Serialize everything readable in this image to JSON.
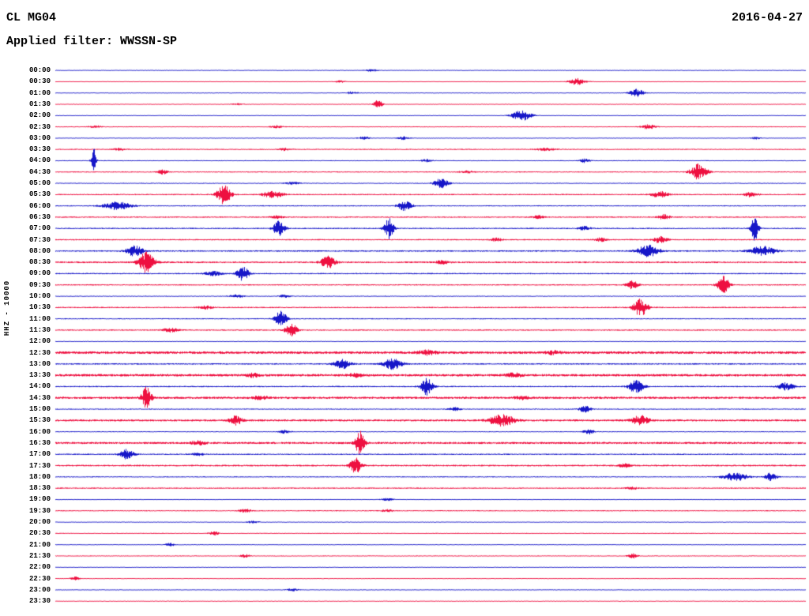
{
  "header": {
    "station": "CL MG04",
    "date": "2016-04-27",
    "filter_label": "Applied filter: WWSSN-SP"
  },
  "axis": {
    "channel_label": "HHZ - 10000"
  },
  "chart_data": {
    "type": "line",
    "title": "CL MG04 helicorder day plot 2016-04-27, WWSSN-SP filtered",
    "xlabel": "",
    "ylabel": "HHZ - 10000",
    "row_duration_min": 30,
    "legend": "alternating line colors per 30-minute trace segment",
    "colors": {
      "blue": "#1616c8",
      "red": "#ee1040"
    },
    "rows": [
      {
        "time": "00:00",
        "color": "blue",
        "noise": 0.5,
        "events": [
          [
            400,
            1.5,
            5
          ]
        ]
      },
      {
        "time": "00:30",
        "color": "red",
        "noise": 0.5,
        "events": [
          [
            660,
            4,
            7
          ],
          [
            360,
            1.2,
            5
          ]
        ]
      },
      {
        "time": "01:00",
        "color": "blue",
        "noise": 0.5,
        "events": [
          [
            735,
            5,
            6
          ],
          [
            375,
            1.5,
            5
          ]
        ]
      },
      {
        "time": "01:30",
        "color": "red",
        "noise": 0.5,
        "events": [
          [
            408,
            5,
            4
          ],
          [
            230,
            1,
            5
          ]
        ]
      },
      {
        "time": "02:00",
        "color": "blue",
        "noise": 0.5,
        "events": [
          [
            590,
            7,
            8
          ]
        ]
      },
      {
        "time": "02:30",
        "color": "red",
        "noise": 0.6,
        "events": [
          [
            750,
            3,
            6
          ],
          [
            280,
            1.5,
            5
          ],
          [
            50,
            1.5,
            5
          ]
        ]
      },
      {
        "time": "03:00",
        "color": "blue",
        "noise": 0.5,
        "events": [
          [
            390,
            2,
            5
          ],
          [
            440,
            2,
            5
          ],
          [
            886,
            1.5,
            4
          ]
        ]
      },
      {
        "time": "03:30",
        "color": "red",
        "noise": 0.7,
        "events": [
          [
            80,
            1.5,
            5
          ],
          [
            290,
            1.5,
            5
          ],
          [
            620,
            1.5,
            8
          ]
        ]
      },
      {
        "time": "04:00",
        "color": "blue",
        "noise": 0.6,
        "events": [
          [
            48,
            18,
            2
          ],
          [
            470,
            1.5,
            5
          ],
          [
            670,
            2.5,
            4
          ]
        ]
      },
      {
        "time": "04:30",
        "color": "red",
        "noise": 0.7,
        "events": [
          [
            135,
            3,
            4
          ],
          [
            814,
            10,
            7
          ],
          [
            520,
            1.5,
            6
          ]
        ]
      },
      {
        "time": "05:00",
        "color": "blue",
        "noise": 0.6,
        "events": [
          [
            488,
            6,
            6
          ],
          [
            300,
            1.5,
            6
          ]
        ]
      },
      {
        "time": "05:30",
        "color": "red",
        "noise": 0.8,
        "events": [
          [
            213,
            12,
            6
          ],
          [
            275,
            4,
            9
          ],
          [
            765,
            4,
            7
          ],
          [
            880,
            3,
            6
          ]
        ]
      },
      {
        "time": "06:00",
        "color": "blue",
        "noise": 0.7,
        "events": [
          [
            78,
            5,
            12
          ],
          [
            442,
            6,
            6
          ]
        ]
      },
      {
        "time": "06:30",
        "color": "red",
        "noise": 0.8,
        "events": [
          [
            280,
            1.5,
            6
          ],
          [
            610,
            2,
            5
          ],
          [
            770,
            3,
            5
          ]
        ]
      },
      {
        "time": "07:00",
        "color": "blue",
        "noise": 0.8,
        "events": [
          [
            283,
            10,
            5
          ],
          [
            422,
            13,
            4
          ],
          [
            670,
            2.5,
            5
          ],
          [
            885,
            16,
            3
          ]
        ]
      },
      {
        "time": "07:30",
        "color": "red",
        "noise": 0.8,
        "events": [
          [
            558,
            2,
            5
          ],
          [
            690,
            2.5,
            5
          ],
          [
            765,
            4,
            6
          ]
        ]
      },
      {
        "time": "08:00",
        "color": "blue",
        "noise": 0.9,
        "events": [
          [
            100,
            7,
            7
          ],
          [
            750,
            8,
            9
          ],
          [
            895,
            6,
            11
          ]
        ]
      },
      {
        "time": "08:30",
        "color": "red",
        "noise": 1.0,
        "events": [
          [
            115,
            13,
            7
          ],
          [
            345,
            8,
            6
          ],
          [
            490,
            2,
            6
          ]
        ]
      },
      {
        "time": "09:00",
        "color": "blue",
        "noise": 0.8,
        "events": [
          [
            200,
            3,
            7
          ],
          [
            237,
            9,
            5
          ]
        ]
      },
      {
        "time": "09:30",
        "color": "red",
        "noise": 0.8,
        "events": [
          [
            730,
            5,
            5
          ],
          [
            845,
            11,
            5
          ]
        ]
      },
      {
        "time": "10:00",
        "color": "blue",
        "noise": 0.6,
        "events": [
          [
            230,
            2,
            6
          ],
          [
            290,
            1.5,
            5
          ]
        ]
      },
      {
        "time": "10:30",
        "color": "red",
        "noise": 0.8,
        "events": [
          [
            740,
            11,
            6
          ],
          [
            190,
            2,
            6
          ]
        ]
      },
      {
        "time": "11:00",
        "color": "blue",
        "noise": 0.7,
        "events": [
          [
            285,
            10,
            5
          ]
        ]
      },
      {
        "time": "11:30",
        "color": "red",
        "noise": 0.8,
        "events": [
          [
            298,
            9,
            5
          ],
          [
            145,
            2.5,
            7
          ]
        ]
      },
      {
        "time": "12:00",
        "color": "blue",
        "noise": 0.5,
        "events": []
      },
      {
        "time": "12:30",
        "color": "red",
        "noise": 1.6,
        "events": [
          [
            470,
            2.5,
            8
          ],
          [
            630,
            2,
            6
          ]
        ]
      },
      {
        "time": "13:00",
        "color": "blue",
        "noise": 0.9,
        "events": [
          [
            362,
            6,
            7
          ],
          [
            427,
            7,
            8
          ]
        ]
      },
      {
        "time": "13:30",
        "color": "red",
        "noise": 1.5,
        "events": [
          [
            250,
            2,
            6
          ],
          [
            380,
            2,
            6
          ],
          [
            580,
            2.5,
            7
          ]
        ]
      },
      {
        "time": "14:00",
        "color": "blue",
        "noise": 0.8,
        "events": [
          [
            470,
            11,
            5
          ],
          [
            735,
            9,
            6
          ],
          [
            925,
            5,
            7
          ]
        ]
      },
      {
        "time": "14:30",
        "color": "red",
        "noise": 1.4,
        "events": [
          [
            115,
            14,
            4
          ],
          [
            260,
            2.5,
            6
          ],
          [
            590,
            2,
            6
          ]
        ]
      },
      {
        "time": "15:00",
        "color": "blue",
        "noise": 0.7,
        "events": [
          [
            670,
            4,
            5
          ],
          [
            505,
            2,
            5
          ]
        ]
      },
      {
        "time": "15:30",
        "color": "red",
        "noise": 1.2,
        "events": [
          [
            228,
            6,
            5
          ],
          [
            565,
            7,
            11
          ],
          [
            740,
            6,
            7
          ]
        ]
      },
      {
        "time": "16:00",
        "color": "blue",
        "noise": 0.6,
        "events": [
          [
            290,
            2,
            5
          ],
          [
            675,
            3,
            5
          ]
        ]
      },
      {
        "time": "16:30",
        "color": "red",
        "noise": 1.3,
        "events": [
          [
            385,
            15,
            4
          ],
          [
            180,
            2.5,
            6
          ]
        ]
      },
      {
        "time": "17:00",
        "color": "blue",
        "noise": 0.8,
        "events": [
          [
            90,
            6,
            6
          ],
          [
            180,
            2,
            5
          ]
        ]
      },
      {
        "time": "17:30",
        "color": "red",
        "noise": 1.0,
        "events": [
          [
            380,
            10,
            5
          ],
          [
            720,
            2,
            5
          ]
        ]
      },
      {
        "time": "18:00",
        "color": "blue",
        "noise": 0.7,
        "events": [
          [
            860,
            5,
            11
          ],
          [
            905,
            5,
            5
          ]
        ]
      },
      {
        "time": "18:30",
        "color": "red",
        "noise": 0.8,
        "events": [
          [
            730,
            1.5,
            5
          ]
        ]
      },
      {
        "time": "19:00",
        "color": "blue",
        "noise": 0.5,
        "events": [
          [
            420,
            1.5,
            5
          ]
        ]
      },
      {
        "time": "19:30",
        "color": "red",
        "noise": 0.7,
        "events": [
          [
            240,
            2,
            5
          ],
          [
            420,
            1.5,
            5
          ]
        ]
      },
      {
        "time": "20:00",
        "color": "blue",
        "noise": 0.5,
        "events": [
          [
            250,
            1.5,
            5
          ]
        ]
      },
      {
        "time": "20:30",
        "color": "red",
        "noise": 0.6,
        "events": [
          [
            200,
            2.5,
            4
          ]
        ]
      },
      {
        "time": "21:00",
        "color": "blue",
        "noise": 0.5,
        "events": [
          [
            145,
            2,
            4
          ]
        ]
      },
      {
        "time": "21:30",
        "color": "red",
        "noise": 0.6,
        "events": [
          [
            240,
            2,
            4
          ],
          [
            730,
            3,
            4
          ]
        ]
      },
      {
        "time": "22:00",
        "color": "blue",
        "noise": 0.5,
        "events": []
      },
      {
        "time": "22:30",
        "color": "red",
        "noise": 0.5,
        "events": [
          [
            25,
            2,
            4
          ]
        ]
      },
      {
        "time": "23:00",
        "color": "blue",
        "noise": 0.5,
        "events": [
          [
            300,
            1.5,
            5
          ]
        ]
      },
      {
        "time": "23:30",
        "color": "red",
        "noise": 0.5,
        "events": []
      }
    ]
  }
}
